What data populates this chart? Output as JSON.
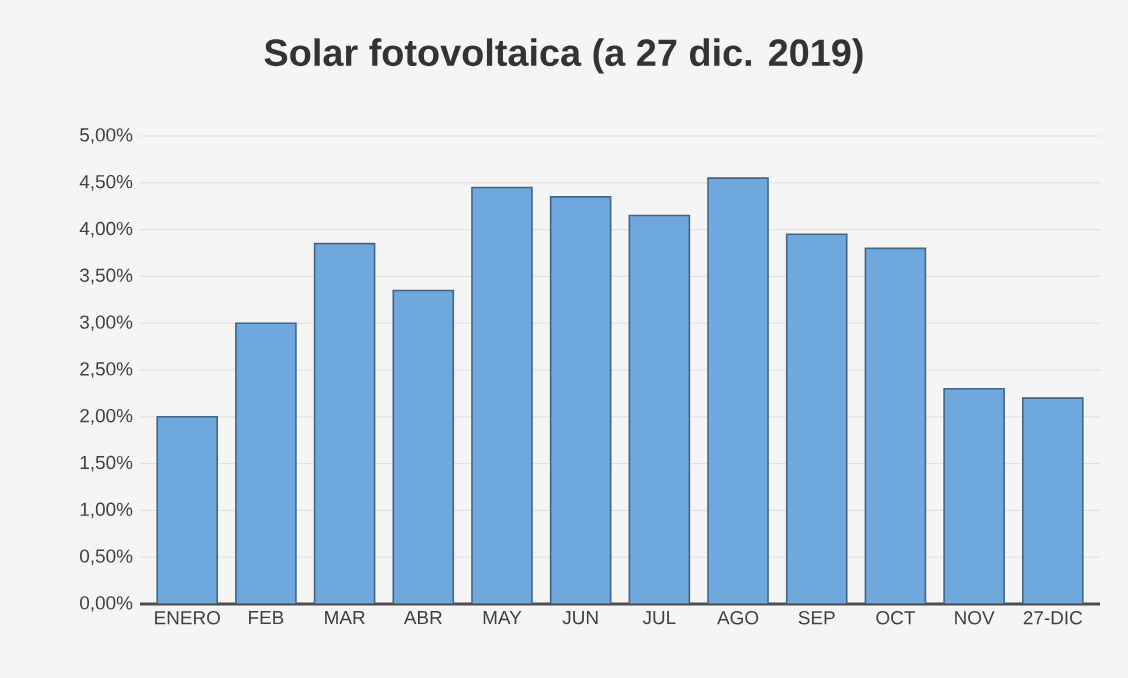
{
  "chart_data": {
    "type": "bar",
    "title": "Solar fotovoltaica (a 27 dic. 2019)",
    "categories": [
      "ENERO",
      "FEB",
      "MAR",
      "ABR",
      "MAY",
      "JUN",
      "JUL",
      "AGO",
      "SEP",
      "OCT",
      "NOV",
      "27-DIC"
    ],
    "values": [
      2.0,
      3.0,
      3.85,
      3.35,
      4.45,
      4.35,
      4.15,
      4.55,
      3.95,
      3.8,
      2.3,
      2.2
    ],
    "color": "#6fa8dc",
    "ylim": [
      0,
      5
    ],
    "yticks": [
      {
        "value": 0,
        "label": "0,00%"
      },
      {
        "value": 0.5,
        "label": "0,50%"
      },
      {
        "value": 1,
        "label": "1,00%"
      },
      {
        "value": 1.5,
        "label": "1,50%"
      },
      {
        "value": 2,
        "label": "2,00%"
      },
      {
        "value": 2.5,
        "label": "2,50%"
      },
      {
        "value": 3,
        "label": "3,00%"
      },
      {
        "value": 3.5,
        "label": "3,50%"
      },
      {
        "value": 4,
        "label": "4,00%"
      },
      {
        "value": 4.5,
        "label": "4,50%"
      },
      {
        "value": 5,
        "label": "5,00%"
      }
    ],
    "grid": "y"
  }
}
